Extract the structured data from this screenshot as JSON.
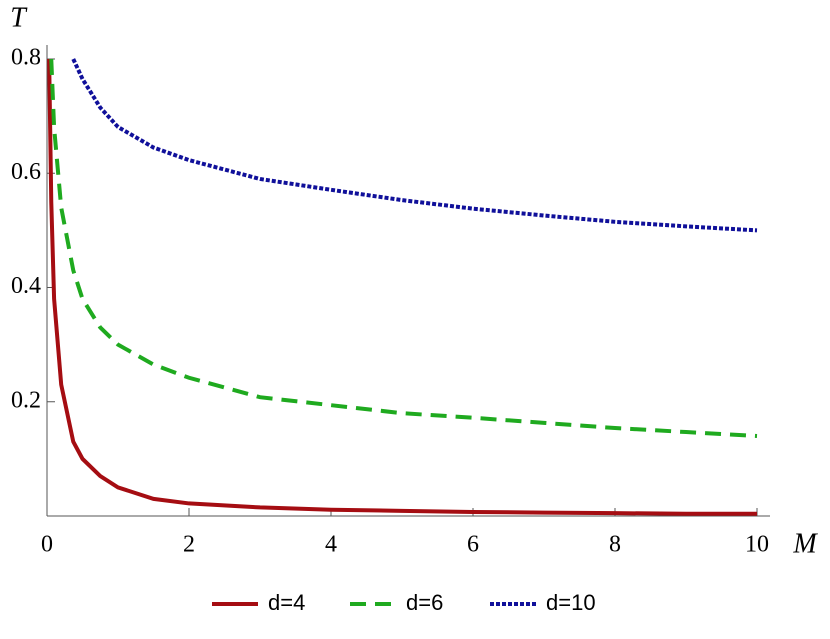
{
  "chart_data": {
    "type": "line",
    "x_label": "M",
    "y_label": "T",
    "x": [
      0.03,
      0.06,
      0.1,
      0.2,
      0.37,
      0.5,
      0.75,
      1,
      1.5,
      2,
      3,
      4,
      5,
      6,
      7,
      8,
      9,
      10
    ],
    "series": [
      {
        "name": "d=4",
        "color": "#a50d12",
        "dash": "solid",
        "values": [
          0.8,
          0.55,
          0.38,
          0.23,
          0.13,
          0.1,
          0.07,
          0.05,
          0.03,
          0.022,
          0.015,
          0.011,
          0.009,
          0.007,
          0.006,
          0.005,
          0.004,
          0.004
        ]
      },
      {
        "name": "d=6",
        "color": "#1faa1f",
        "dash": "dashed",
        "values": [
          null,
          0.8,
          0.68,
          0.54,
          0.43,
          0.38,
          0.33,
          0.3,
          0.265,
          0.242,
          0.208,
          0.194,
          0.18,
          0.172,
          0.163,
          0.154,
          0.147,
          0.14
        ]
      },
      {
        "name": "d=10",
        "color": "#10109a",
        "dash": "dotted",
        "values": [
          null,
          null,
          null,
          null,
          0.8,
          0.765,
          0.715,
          0.681,
          0.645,
          0.623,
          0.59,
          0.571,
          0.553,
          0.538,
          0.526,
          0.515,
          0.507,
          0.5
        ]
      }
    ],
    "xlim": [
      0,
      10
    ],
    "xticks": [
      0,
      2,
      4,
      6,
      8,
      10
    ],
    "ylim": [
      0,
      0.8
    ],
    "yticks": [
      0.2,
      0.4,
      0.6,
      0.8
    ],
    "legend": "bottom"
  }
}
